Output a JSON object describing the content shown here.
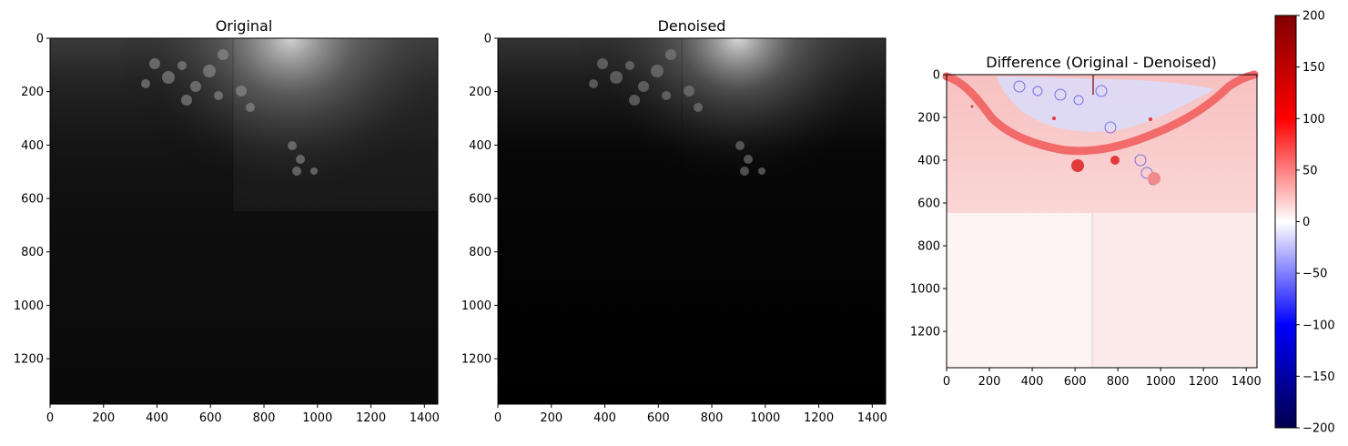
{
  "chart_data": [
    {
      "type": "heatmap",
      "title": "Original",
      "colormap": "gray",
      "xlim": [
        0,
        1450
      ],
      "ylim": [
        1370,
        0
      ],
      "xticks": [
        0,
        200,
        400,
        600,
        800,
        1000,
        1200,
        1400
      ],
      "yticks": [
        0,
        200,
        400,
        600,
        800,
        1000,
        1200
      ],
      "grid": false
    },
    {
      "type": "heatmap",
      "title": "Denoised",
      "colormap": "gray",
      "xlim": [
        0,
        1450
      ],
      "ylim": [
        1370,
        0
      ],
      "xticks": [
        0,
        200,
        400,
        600,
        800,
        1000,
        1200,
        1400
      ],
      "yticks": [
        0,
        200,
        400,
        600,
        800,
        1000,
        1200
      ],
      "grid": false
    },
    {
      "type": "heatmap",
      "title": "Difference (Original - Denoised)",
      "colormap": "seismic",
      "xlim": [
        0,
        1450
      ],
      "ylim": [
        1370,
        0
      ],
      "xticks": [
        0,
        200,
        400,
        600,
        800,
        1000,
        1200,
        1400
      ],
      "yticks": [
        0,
        200,
        400,
        600,
        800,
        1000,
        1200
      ],
      "grid": false,
      "colorbar": {
        "range": [
          -200,
          200
        ],
        "ticks": [
          200,
          150,
          100,
          50,
          0,
          -50,
          -100,
          -150,
          -200
        ],
        "placement": "right",
        "colors": [
          "#00004c",
          "#0000ff",
          "#ffffff",
          "#ff0000",
          "#800000"
        ]
      }
    }
  ]
}
